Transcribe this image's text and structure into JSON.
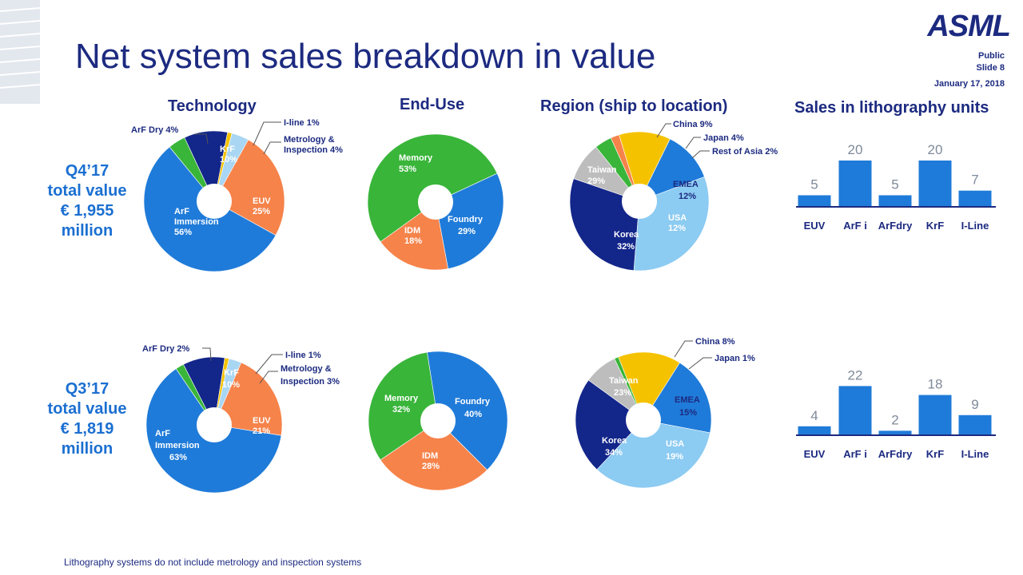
{
  "title": "Net system sales breakdown in value",
  "logo": "ASML",
  "meta": {
    "classification": "Public",
    "slide": "Slide 8",
    "date": "January 17, 2018"
  },
  "headers": {
    "technology": "Technology",
    "end_use": "End-Use",
    "region": "Region (ship to location)",
    "units": "Sales in lithography units"
  },
  "quarters": [
    {
      "line1": "Q4’17",
      "line2": "total value",
      "line3": "€ 1,955",
      "line4": "million"
    },
    {
      "line1": "Q3’17",
      "line2": "total value",
      "line3": "€ 1,819",
      "line4": "million"
    }
  ],
  "footnote": "Lithography systems do not include metrology and inspection systems",
  "colors": {
    "darkNavy": "#13268a",
    "blue": "#1f7bd9",
    "orange": "#f6834a",
    "green": "#39b53a",
    "yellow": "#f5c200",
    "lightBlue": "#8ccbf2",
    "lightBlue2": "#a9d6f3",
    "grey": "#bdbdbd",
    "darkBlue": "#1c2a80",
    "bar": "#1f7bd9"
  },
  "chart_data": [
    {
      "type": "pie",
      "title": "Technology",
      "period": "Q4’17",
      "slices": [
        {
          "label": "KrF 10%",
          "value": 10,
          "color": "darkNavy"
        },
        {
          "label": "I-line 1%",
          "value": 1,
          "color": "yellow"
        },
        {
          "label": "Metrology & Inspection 4%",
          "value": 4,
          "color": "lightBlue2"
        },
        {
          "label": "EUV 25%",
          "value": 25,
          "color": "orange"
        },
        {
          "label": "ArF Immersion 56%",
          "value": 56,
          "color": "blue"
        },
        {
          "label": "ArF Dry 4%",
          "value": 4,
          "color": "green"
        }
      ]
    },
    {
      "type": "pie",
      "title": "End-Use",
      "period": "Q4’17",
      "slices": [
        {
          "label": "Foundry 29%",
          "value": 29,
          "color": "blue"
        },
        {
          "label": "IDM 18%",
          "value": 18,
          "color": "orange"
        },
        {
          "label": "Memory 53%",
          "value": 53,
          "color": "green"
        }
      ]
    },
    {
      "type": "pie",
      "title": "Region (ship to location)",
      "period": "Q4’17",
      "slices": [
        {
          "label": "China 9%",
          "value": 9,
          "color": "grey"
        },
        {
          "label": "Japan 4%",
          "value": 4,
          "color": "green"
        },
        {
          "label": "Rest of Asia 2%",
          "value": 2,
          "color": "orange"
        },
        {
          "label": "EMEA 12%",
          "value": 12,
          "color": "yellow"
        },
        {
          "label": "USA 12%",
          "value": 12,
          "color": "blue"
        },
        {
          "label": "Korea 32%",
          "value": 32,
          "color": "lightBlue"
        },
        {
          "label": "Taiwan 29%",
          "value": 29,
          "color": "darkNavy"
        }
      ]
    },
    {
      "type": "bar",
      "title": "Sales in lithography units",
      "period": "Q4’17",
      "categories": [
        "EUV",
        "ArF i",
        "ArFdry",
        "KrF",
        "I-Line"
      ],
      "values": [
        5,
        20,
        5,
        20,
        7
      ],
      "ylim": [
        0,
        24
      ]
    },
    {
      "type": "pie",
      "title": "Technology",
      "period": "Q3’17",
      "slices": [
        {
          "label": "KrF 10%",
          "value": 10,
          "color": "darkNavy"
        },
        {
          "label": "I-line 1%",
          "value": 1,
          "color": "yellow"
        },
        {
          "label": "Metrology & Inspection 3%",
          "value": 3,
          "color": "lightBlue2"
        },
        {
          "label": "EUV 21%",
          "value": 21,
          "color": "orange"
        },
        {
          "label": "ArF Immersion 63%",
          "value": 63,
          "color": "blue"
        },
        {
          "label": "ArF Dry 2%",
          "value": 2,
          "color": "green"
        }
      ]
    },
    {
      "type": "pie",
      "title": "End-Use",
      "period": "Q3’17",
      "slices": [
        {
          "label": "Foundry 40%",
          "value": 40,
          "color": "blue"
        },
        {
          "label": "IDM 28%",
          "value": 28,
          "color": "orange"
        },
        {
          "label": "Memory 32%",
          "value": 32,
          "color": "green"
        }
      ]
    },
    {
      "type": "pie",
      "title": "Region (ship to location)",
      "period": "Q3’17",
      "slices": [
        {
          "label": "China 8%",
          "value": 8,
          "color": "grey"
        },
        {
          "label": "Japan 1%",
          "value": 1,
          "color": "green"
        },
        {
          "label": "EMEA 15%",
          "value": 15,
          "color": "yellow"
        },
        {
          "label": "USA 19%",
          "value": 19,
          "color": "blue"
        },
        {
          "label": "Korea 34%",
          "value": 34,
          "color": "lightBlue"
        },
        {
          "label": "Taiwan 23%",
          "value": 23,
          "color": "darkNavy"
        }
      ]
    },
    {
      "type": "bar",
      "title": "Sales in lithography units",
      "period": "Q3’17",
      "categories": [
        "EUV",
        "ArF i",
        "ArFdry",
        "KrF",
        "I-Line"
      ],
      "values": [
        4,
        22,
        2,
        18,
        9
      ],
      "ylim": [
        0,
        24
      ]
    }
  ]
}
